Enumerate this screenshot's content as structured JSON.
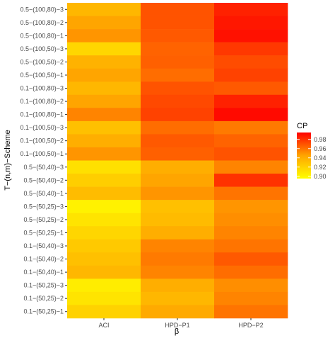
{
  "chart_data": {
    "type": "heatmap",
    "xlabel": "β",
    "ylabel": "T−(n,m)−Scheme",
    "x_categories": [
      "ACI",
      "HPD−P1",
      "HPD−P2"
    ],
    "y_categories": [
      "0.5−(100,80)−3",
      "0.5−(100,80)−2",
      "0.5−(100,80)−1",
      "0.5−(100,50)−3",
      "0.5−(100,50)−2",
      "0.5−(100,50)−1",
      "0.1−(100,80)−3",
      "0.1−(100,80)−2",
      "0.1−(100,80)−1",
      "0.1−(100,50)−3",
      "0.1−(100,50)−2",
      "0.1−(100,50)−1",
      "0.5−(50,40)−3",
      "0.5−(50,40)−2",
      "0.5−(50,40)−1",
      "0.5−(50,25)−3",
      "0.5−(50,25)−2",
      "0.5−(50,25)−1",
      "0.1−(50,40)−3",
      "0.1−(50,40)−2",
      "0.1−(50,40)−1",
      "0.1−(50,25)−3",
      "0.1−(50,25)−2",
      "0.1−(50,25)−1"
    ],
    "values": [
      [
        0.935,
        0.97,
        0.985
      ],
      [
        0.945,
        0.97,
        0.988
      ],
      [
        0.95,
        0.968,
        0.99
      ],
      [
        0.918,
        0.965,
        0.978
      ],
      [
        0.938,
        0.966,
        0.972
      ],
      [
        0.945,
        0.962,
        0.975
      ],
      [
        0.935,
        0.97,
        0.968
      ],
      [
        0.945,
        0.973,
        0.985
      ],
      [
        0.955,
        0.975,
        0.992
      ],
      [
        0.93,
        0.962,
        0.958
      ],
      [
        0.94,
        0.968,
        0.965
      ],
      [
        0.95,
        0.966,
        0.97
      ],
      [
        0.912,
        0.94,
        0.955
      ],
      [
        0.922,
        0.945,
        0.98
      ],
      [
        0.932,
        0.95,
        0.96
      ],
      [
        0.902,
        0.93,
        0.95
      ],
      [
        0.91,
        0.933,
        0.952
      ],
      [
        0.918,
        0.94,
        0.955
      ],
      [
        0.925,
        0.955,
        0.96
      ],
      [
        0.93,
        0.958,
        0.968
      ],
      [
        0.935,
        0.955,
        0.962
      ],
      [
        0.905,
        0.94,
        0.952
      ],
      [
        0.91,
        0.935,
        0.955
      ],
      [
        0.92,
        0.942,
        0.96
      ]
    ],
    "legend": {
      "title": "CP",
      "ticks": [
        "0.90",
        "0.92",
        "0.94",
        "0.96",
        "0.98"
      ],
      "tick_values": [
        0.9,
        0.92,
        0.94,
        0.96,
        0.98
      ],
      "range": [
        0.895,
        0.995
      ]
    },
    "colors": {
      "low": "#ffff00",
      "mid": "#ffa500",
      "high": "#ff0000",
      "panel_bg": "#ebebeb"
    }
  }
}
